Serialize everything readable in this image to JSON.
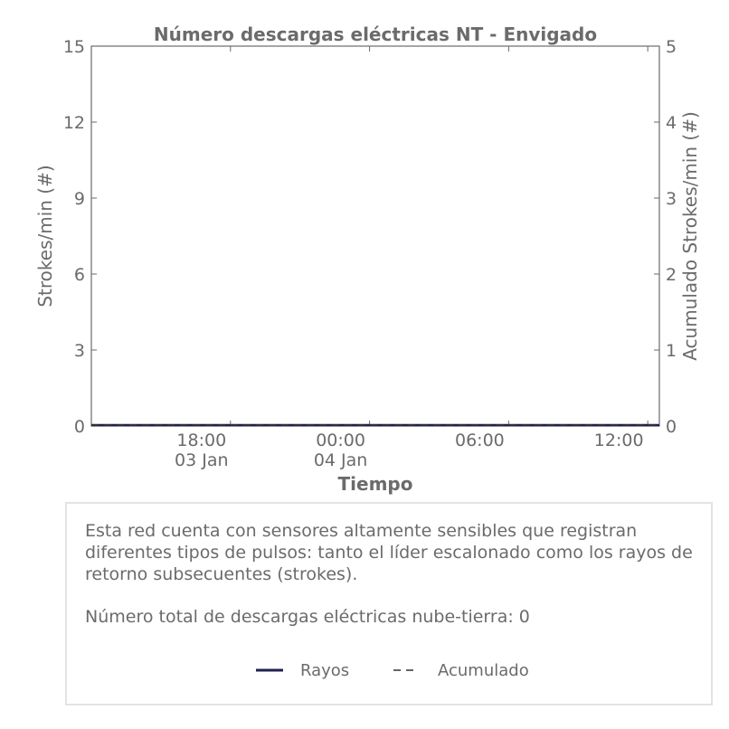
{
  "chart_data": {
    "type": "line",
    "title": "Número descargas eléctricas NT - Envigado",
    "xlabel": "Tiempo",
    "ylabel": "Strokes/min (#)",
    "y2label": "Acumulado Strokes/min (#)",
    "ylim": [
      0,
      15
    ],
    "y2lim": [
      0,
      5
    ],
    "yticks": [
      0,
      3,
      6,
      9,
      12,
      15
    ],
    "y2ticks": [
      0,
      1,
      2,
      3,
      4,
      5
    ],
    "xlim": [
      "2024-01-03T12:00",
      "2024-01-04T12:30"
    ],
    "xticks": [
      {
        "x": "2024-01-03T18:00",
        "label": "18:00",
        "sublabel": "03 Jan"
      },
      {
        "x": "2024-01-04T00:00",
        "label": "00:00",
        "sublabel": "04 Jan"
      },
      {
        "x": "2024-01-04T06:00",
        "label": "06:00",
        "sublabel": ""
      },
      {
        "x": "2024-01-04T12:00",
        "label": "12:00",
        "sublabel": ""
      }
    ],
    "grid": false,
    "series": [
      {
        "name": "Rayos",
        "color": "#1f1f4f",
        "style": "solid",
        "axis": "left",
        "x": [
          "2024-01-03T12:00",
          "2024-01-04T12:30"
        ],
        "values": [
          0,
          0
        ]
      },
      {
        "name": "Acumulado",
        "color": "#333333",
        "style": "dashed",
        "axis": "right",
        "x": [
          "2024-01-03T12:00",
          "2024-01-04T12:30"
        ],
        "values": [
          0,
          0
        ]
      }
    ]
  },
  "info": {
    "description": "Esta red cuenta con sensores altamente sensibles que registran diferentes tipos de pulsos: tanto el líder escalonado como los rayos de retorno subsecuentes (strokes).",
    "total": "Número total de descargas eléctricas nube-tierra: 0"
  },
  "legend": {
    "rayos_label": "Rayos",
    "acumulado_label": "Acumulado"
  }
}
